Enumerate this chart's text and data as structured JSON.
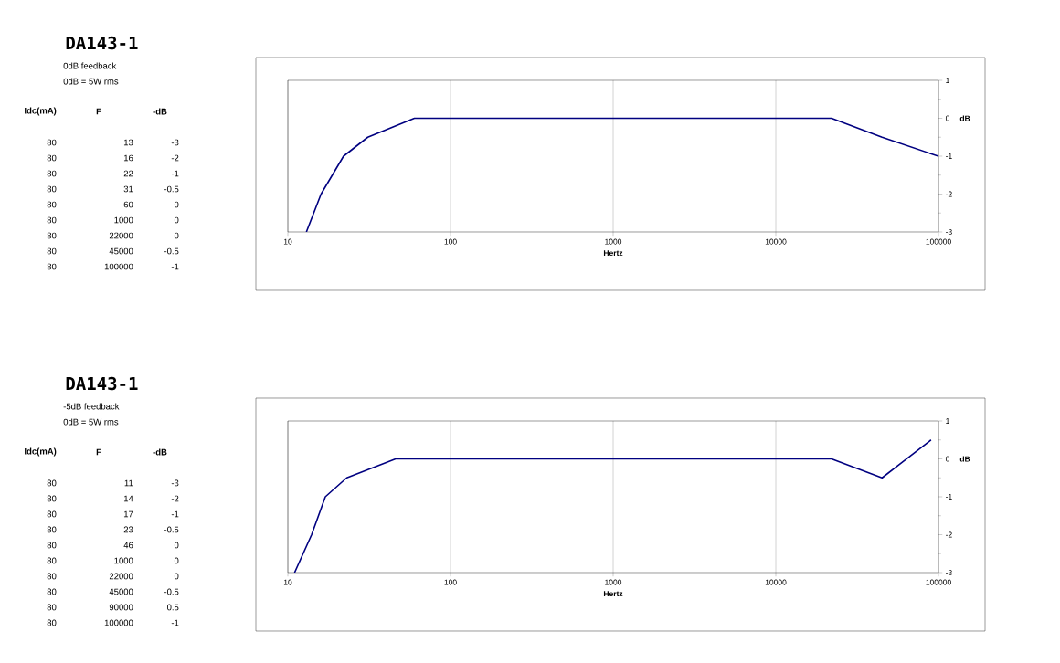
{
  "chart_data": [
    {
      "type": "line",
      "xlabel": "Hertz",
      "ylabel": "dB",
      "annotations": [
        "DA143-1",
        "0dB feedback",
        "0dB = 5W rms",
        "Idc(mA)",
        "F",
        "-dB",
        "80",
        "13",
        "-3",
        "80",
        "16",
        "-2",
        "80",
        "22",
        "-1",
        "80",
        "31",
        "-0.5",
        "80",
        "60",
        "0",
        "80",
        "1000",
        "0",
        "80",
        "22000",
        "0",
        "80",
        "45000",
        "-0.5",
        "80",
        "100000",
        "-1"
      ],
      "x": [
        13,
        16,
        22,
        31,
        60,
        1000,
        22000,
        45000,
        100000
      ],
      "values": [
        -3,
        -2,
        -1,
        -0.5,
        0,
        0,
        0,
        -0.5,
        -1
      ],
      "color": "#000080",
      "log": "x",
      "xlim": [
        10,
        100000
      ],
      "xticks": [
        10,
        100,
        1000,
        10000,
        100000
      ],
      "ylim": [
        -3,
        1
      ],
      "yticks": [
        -3,
        -2,
        -1,
        0,
        1
      ],
      "grid": "x"
    },
    {
      "type": "line",
      "xlabel": "Hertz",
      "ylabel": "dB",
      "annotations": [
        "DA143-1",
        "-5dB feedback",
        "0dB = 5W rms",
        "Idc(mA)",
        "F",
        "-dB",
        "80",
        "11",
        "-3",
        "80",
        "14",
        "-2",
        "80",
        "17",
        "-1",
        "80",
        "23",
        "-0.5",
        "80",
        "46",
        "0",
        "80",
        "1000",
        "0",
        "80",
        "22000",
        "0",
        "80",
        "45000",
        "-0.5",
        "80",
        "90000",
        "0.5",
        "80",
        "100000",
        "-1"
      ],
      "x": [
        11,
        14,
        17,
        23,
        46,
        1000,
        22000,
        45000,
        90000
      ],
      "values": [
        -3,
        -2,
        -1,
        -0.5,
        0,
        0,
        0,
        -0.5,
        0.5
      ],
      "color": "#000080",
      "log": "x",
      "xlim": [
        10,
        100000
      ],
      "xticks": [
        10,
        100,
        1000,
        10000,
        100000
      ],
      "ylim": [
        -3,
        1
      ],
      "yticks": [
        -3,
        -2,
        -1,
        0,
        1
      ],
      "grid": "x"
    }
  ]
}
